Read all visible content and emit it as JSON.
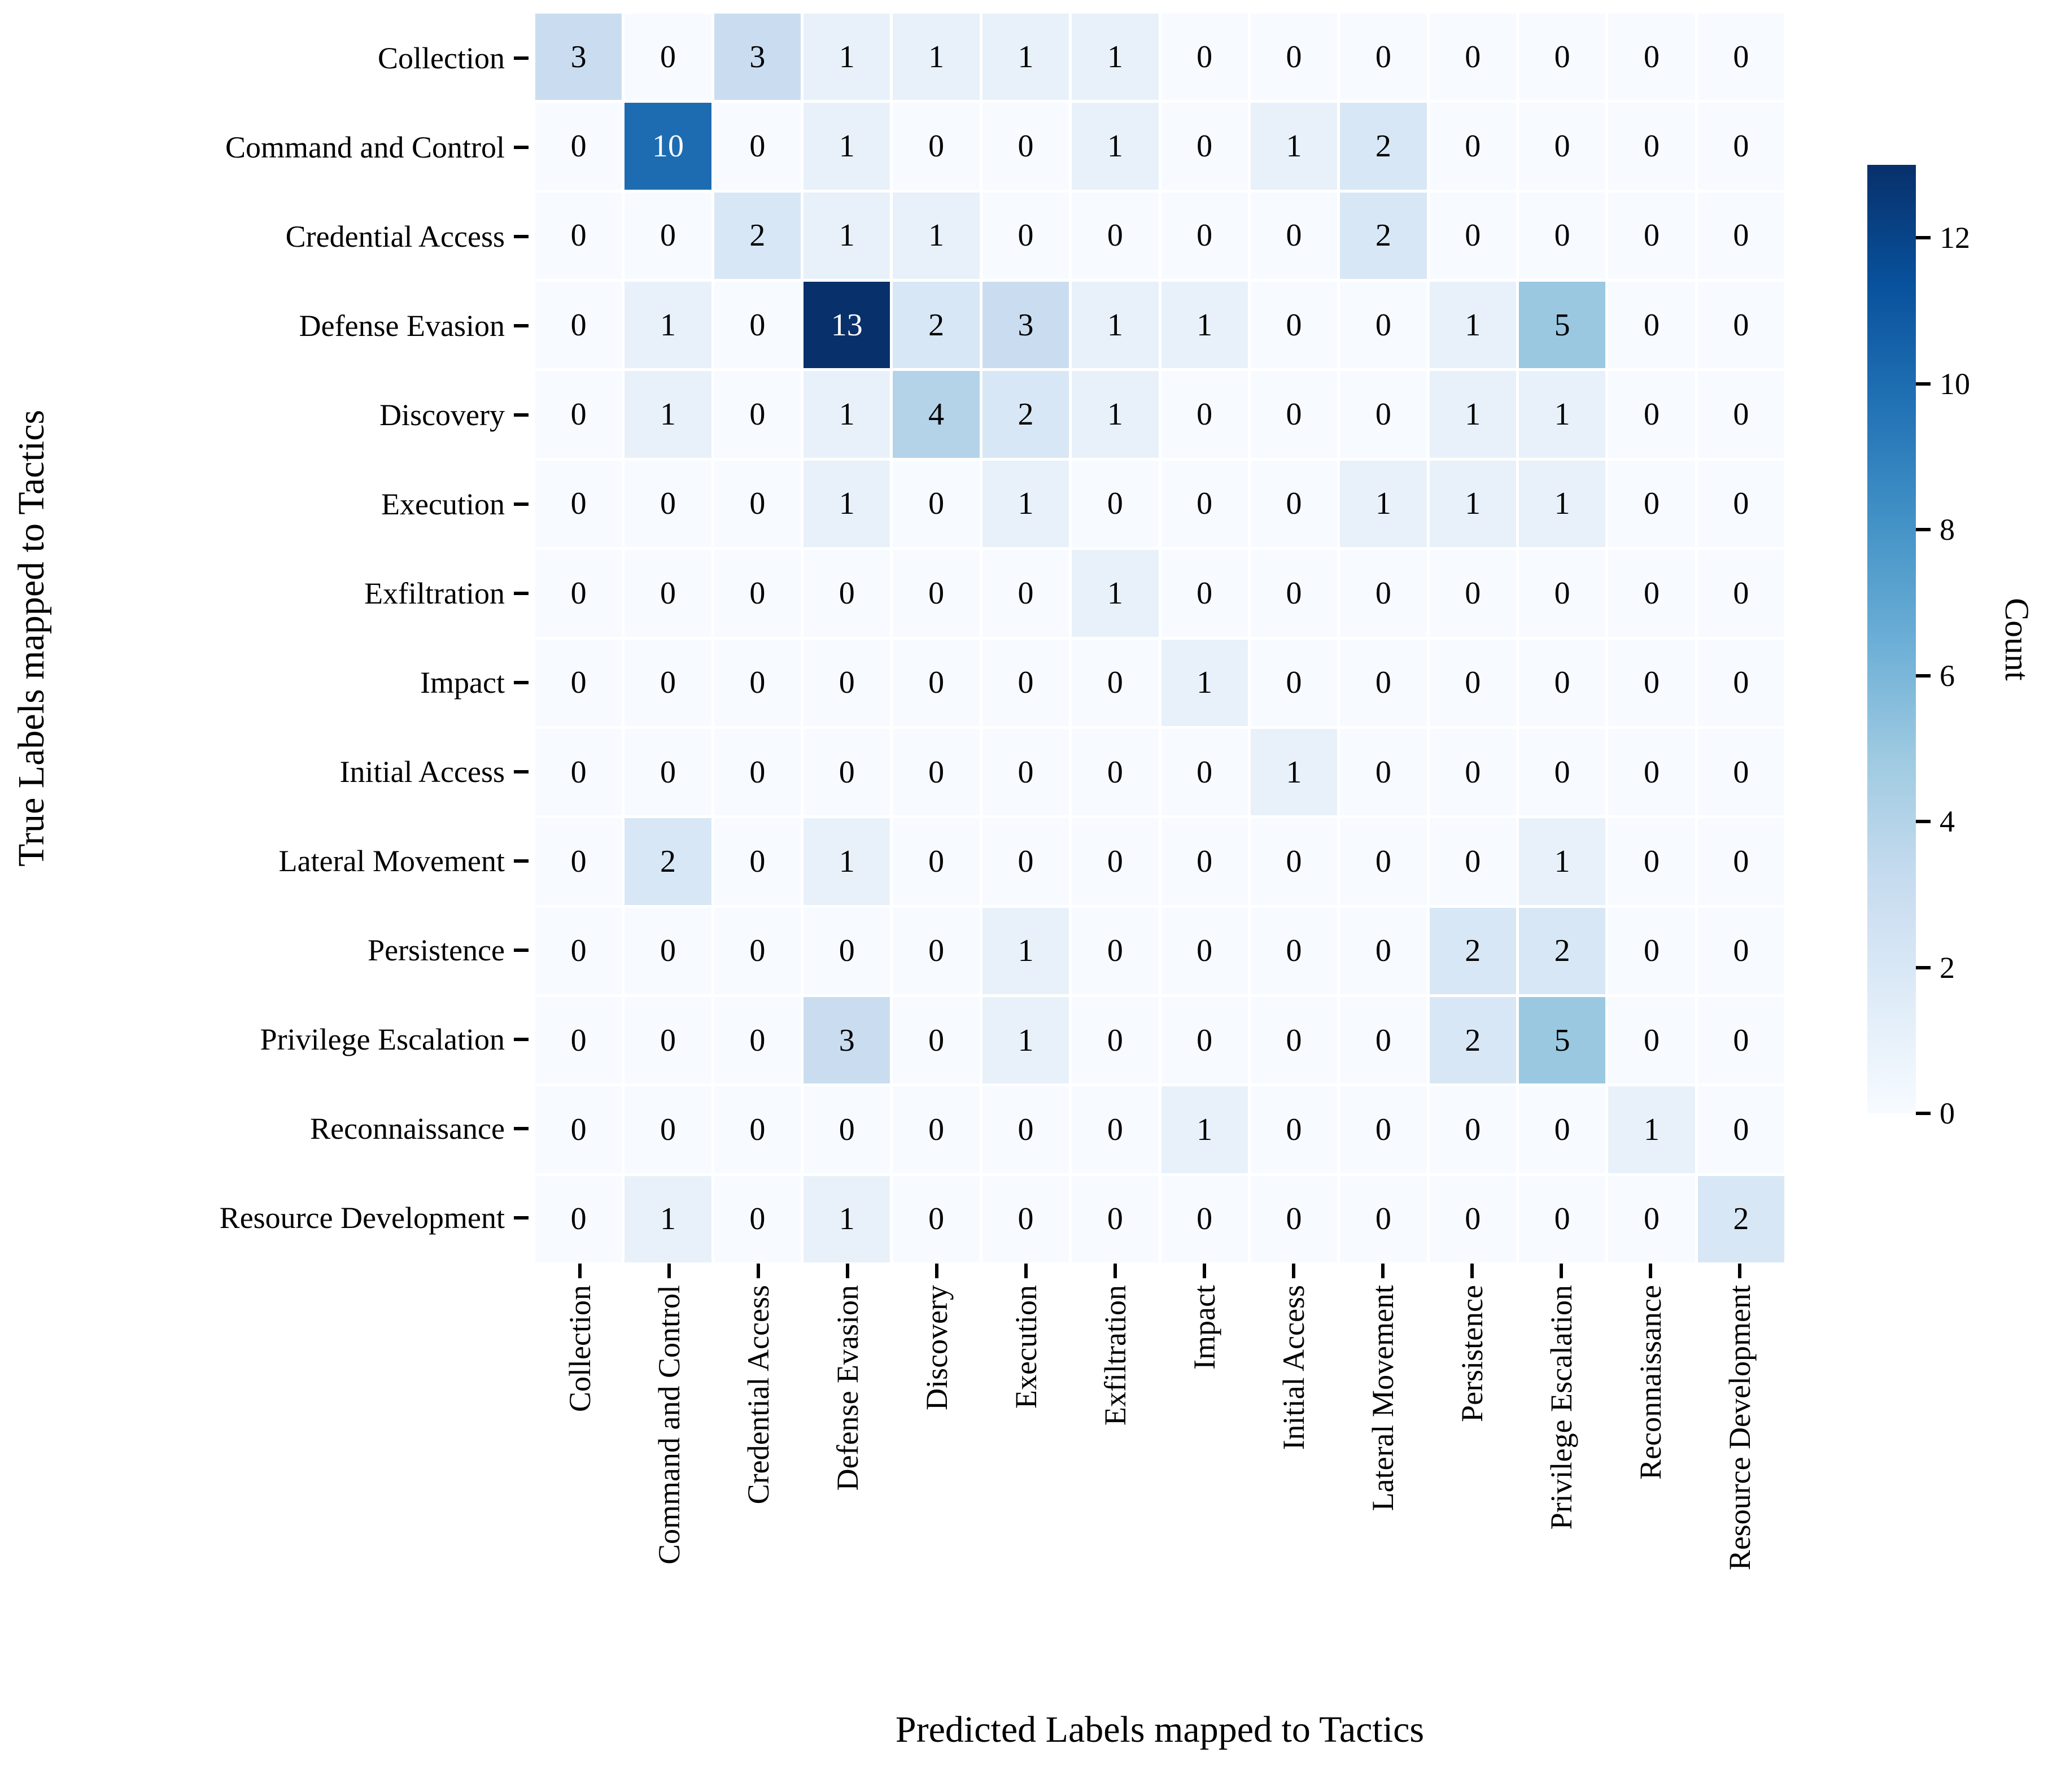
{
  "figure": {
    "background": "#ffffff",
    "text_color": "#000000",
    "cell_text_light": "#ffffff"
  },
  "chart_data": {
    "type": "heatmap",
    "title": "",
    "xlabel": "Predicted Labels mapped to Tactics",
    "ylabel": "True Labels mapped to Tactics",
    "categories": [
      "Collection",
      "Command and Control",
      "Credential Access",
      "Defense Evasion",
      "Discovery",
      "Execution",
      "Exfiltration",
      "Impact",
      "Initial Access",
      "Lateral Movement",
      "Persistence",
      "Privilege Escalation",
      "Reconnaissance",
      "Resource Development"
    ],
    "matrix": [
      [
        3,
        0,
        3,
        1,
        1,
        1,
        1,
        0,
        0,
        0,
        0,
        0,
        0,
        0
      ],
      [
        0,
        10,
        0,
        1,
        0,
        0,
        1,
        0,
        1,
        2,
        0,
        0,
        0,
        0
      ],
      [
        0,
        0,
        2,
        1,
        1,
        0,
        0,
        0,
        0,
        2,
        0,
        0,
        0,
        0
      ],
      [
        0,
        1,
        0,
        13,
        2,
        3,
        1,
        1,
        0,
        0,
        1,
        5,
        0,
        0
      ],
      [
        0,
        1,
        0,
        1,
        4,
        2,
        1,
        0,
        0,
        0,
        1,
        1,
        0,
        0
      ],
      [
        0,
        0,
        0,
        1,
        0,
        1,
        0,
        0,
        0,
        1,
        1,
        1,
        0,
        0
      ],
      [
        0,
        0,
        0,
        0,
        0,
        0,
        1,
        0,
        0,
        0,
        0,
        0,
        0,
        0
      ],
      [
        0,
        0,
        0,
        0,
        0,
        0,
        0,
        1,
        0,
        0,
        0,
        0,
        0,
        0
      ],
      [
        0,
        0,
        0,
        0,
        0,
        0,
        0,
        0,
        1,
        0,
        0,
        0,
        0,
        0
      ],
      [
        0,
        2,
        0,
        1,
        0,
        0,
        0,
        0,
        0,
        0,
        0,
        1,
        0,
        0
      ],
      [
        0,
        0,
        0,
        0,
        0,
        1,
        0,
        0,
        0,
        0,
        2,
        2,
        0,
        0
      ],
      [
        0,
        0,
        0,
        3,
        0,
        1,
        0,
        0,
        0,
        0,
        2,
        5,
        0,
        0
      ],
      [
        0,
        0,
        0,
        0,
        0,
        0,
        0,
        1,
        0,
        0,
        0,
        0,
        1,
        0
      ],
      [
        0,
        1,
        0,
        1,
        0,
        0,
        0,
        0,
        0,
        0,
        0,
        0,
        0,
        2
      ]
    ],
    "vmin": 0,
    "vmax": 13,
    "grid": "off",
    "legend": "none",
    "colorbar": {
      "label": "Count",
      "ticks": [
        0,
        2,
        4,
        6,
        8,
        10,
        12
      ],
      "position": "right",
      "colormap": "Blues",
      "stops": [
        "#f7fbff",
        "#deebf7",
        "#c6dbef",
        "#9ecae1",
        "#6baed6",
        "#4292c6",
        "#2171b5",
        "#08519c",
        "#08306b"
      ]
    }
  }
}
